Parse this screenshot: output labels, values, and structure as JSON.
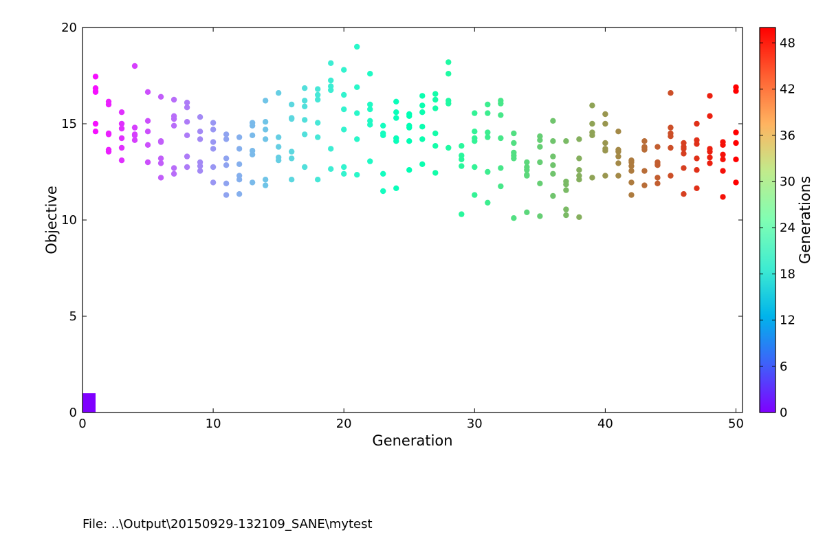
{
  "chart_data": {
    "type": "scatter",
    "xlabel": "Generation",
    "ylabel": "Objective",
    "xlim": [
      0,
      50.5
    ],
    "ylim": [
      0,
      20
    ],
    "xticks": [
      0,
      10,
      20,
      30,
      40,
      50
    ],
    "yticks": [
      0,
      5,
      10,
      15,
      20
    ],
    "grid": false,
    "colormap": "rainbow",
    "colorbar": {
      "label": "Generations",
      "range": [
        0,
        50
      ],
      "ticks": [
        0,
        6,
        12,
        18,
        24,
        30,
        36,
        42,
        48
      ],
      "placement": "right"
    },
    "bar": {
      "x": [
        0,
        1
      ],
      "height": 1,
      "color": "#7f00ff"
    },
    "points": [
      {
        "g": 1,
        "y": [
          17.45,
          16.85,
          16.7,
          16.65,
          15.0,
          14.6
        ]
      },
      {
        "g": 2,
        "y": [
          16.15,
          16.0,
          14.5,
          14.45,
          13.65,
          13.55
        ]
      },
      {
        "g": 3,
        "y": [
          15.6,
          15.0,
          14.75,
          14.25,
          13.75,
          13.1
        ]
      },
      {
        "g": 4,
        "y": [
          18.0,
          14.8,
          14.45,
          14.4,
          14.15
        ]
      },
      {
        "g": 5,
        "y": [
          16.65,
          15.15,
          14.6,
          13.9,
          13.0
        ]
      },
      {
        "g": 6,
        "y": [
          16.4,
          14.1,
          14.05,
          13.2,
          12.95,
          12.2
        ]
      },
      {
        "g": 7,
        "y": [
          16.25,
          15.4,
          15.25,
          14.9,
          12.7,
          12.4
        ]
      },
      {
        "g": 8,
        "y": [
          16.1,
          15.85,
          15.1,
          14.4,
          13.3,
          12.75
        ]
      },
      {
        "g": 9,
        "y": [
          15.35,
          14.6,
          14.2,
          13.0,
          12.8,
          12.55
        ]
      },
      {
        "g": 10,
        "y": [
          15.05,
          14.7,
          14.05,
          13.7,
          12.75,
          11.95
        ]
      },
      {
        "g": 11,
        "y": [
          14.45,
          14.2,
          13.2,
          12.85,
          11.9,
          11.3
        ]
      },
      {
        "g": 12,
        "y": [
          14.3,
          13.7,
          12.9,
          12.3,
          12.1,
          11.35
        ]
      },
      {
        "g": 13,
        "y": [
          15.05,
          14.9,
          14.4,
          13.6,
          13.4,
          11.95
        ]
      },
      {
        "g": 14,
        "y": [
          16.2,
          15.1,
          14.7,
          14.2,
          12.1,
          11.8
        ]
      },
      {
        "g": 15,
        "y": [
          16.6,
          14.3,
          13.8,
          13.25,
          13.1
        ]
      },
      {
        "g": 16,
        "y": [
          16.0,
          15.3,
          15.25,
          13.55,
          13.2,
          12.1
        ]
      },
      {
        "g": 17,
        "y": [
          16.85,
          16.2,
          15.9,
          15.2,
          14.45,
          12.75
        ]
      },
      {
        "g": 18,
        "y": [
          16.8,
          16.5,
          16.25,
          15.05,
          14.3,
          12.1
        ]
      },
      {
        "g": 19,
        "y": [
          18.15,
          17.25,
          16.95,
          16.75,
          13.7,
          12.65
        ]
      },
      {
        "g": 20,
        "y": [
          17.8,
          16.5,
          15.75,
          14.7,
          12.75,
          12.4
        ]
      },
      {
        "g": 21,
        "y": [
          19.0,
          16.9,
          15.55,
          14.2,
          12.35
        ]
      },
      {
        "g": 22,
        "y": [
          17.6,
          16.0,
          15.75,
          15.15,
          14.95,
          13.05
        ]
      },
      {
        "g": 23,
        "y": [
          14.9,
          14.5,
          14.4,
          12.4,
          11.5
        ]
      },
      {
        "g": 24,
        "y": [
          16.15,
          15.6,
          15.3,
          14.25,
          14.1,
          11.65
        ]
      },
      {
        "g": 25,
        "y": [
          15.5,
          15.4,
          14.9,
          14.8,
          14.1,
          12.6
        ]
      },
      {
        "g": 26,
        "y": [
          16.45,
          15.95,
          15.6,
          14.85,
          14.2,
          12.9
        ]
      },
      {
        "g": 27,
        "y": [
          16.55,
          16.25,
          15.8,
          14.5,
          13.85,
          12.45
        ]
      },
      {
        "g": 28,
        "y": [
          18.2,
          17.6,
          16.2,
          16.05,
          13.75
        ]
      },
      {
        "g": 29,
        "y": [
          13.85,
          13.35,
          13.15,
          12.8,
          10.3
        ]
      },
      {
        "g": 30,
        "y": [
          15.55,
          14.6,
          14.25,
          14.1,
          12.75,
          11.3
        ]
      },
      {
        "g": 31,
        "y": [
          16.0,
          15.55,
          14.55,
          14.3,
          12.5,
          10.9
        ]
      },
      {
        "g": 32,
        "y": [
          16.2,
          16.05,
          15.45,
          14.25,
          12.7,
          11.75
        ]
      },
      {
        "g": 33,
        "y": [
          14.5,
          14.0,
          13.5,
          13.35,
          13.2,
          10.1
        ]
      },
      {
        "g": 34,
        "y": [
          13.0,
          12.75,
          12.6,
          12.35,
          12.3,
          10.4
        ]
      },
      {
        "g": 35,
        "y": [
          14.35,
          14.15,
          13.8,
          13.0,
          11.9,
          10.2
        ]
      },
      {
        "g": 36,
        "y": [
          15.15,
          14.1,
          13.3,
          12.85,
          12.4,
          11.25
        ]
      },
      {
        "g": 37,
        "y": [
          14.1,
          12.0,
          11.85,
          11.55,
          10.55,
          10.25
        ]
      },
      {
        "g": 38,
        "y": [
          14.2,
          13.2,
          12.6,
          12.3,
          12.1,
          10.15
        ]
      },
      {
        "g": 39,
        "y": [
          15.95,
          15.0,
          14.55,
          14.4,
          12.2
        ]
      },
      {
        "g": 40,
        "y": [
          15.5,
          15.0,
          14.0,
          13.7,
          13.6,
          12.3
        ]
      },
      {
        "g": 41,
        "y": [
          14.6,
          13.65,
          13.55,
          13.3,
          12.95,
          12.3
        ]
      },
      {
        "g": 42,
        "y": [
          13.1,
          13.0,
          12.8,
          12.55,
          11.95,
          11.3
        ]
      },
      {
        "g": 43,
        "y": [
          14.1,
          13.8,
          13.75,
          13.65,
          12.55,
          11.8
        ]
      },
      {
        "g": 44,
        "y": [
          13.8,
          13.0,
          12.9,
          12.85,
          12.2,
          11.9
        ]
      },
      {
        "g": 45,
        "y": [
          16.6,
          14.8,
          14.5,
          14.35,
          13.75,
          12.3
        ]
      },
      {
        "g": 46,
        "y": [
          14.0,
          13.8,
          13.7,
          13.45,
          12.7,
          11.35
        ]
      },
      {
        "g": 47,
        "y": [
          15.0,
          14.15,
          13.95,
          13.2,
          12.6,
          11.65
        ]
      },
      {
        "g": 48,
        "y": [
          16.45,
          15.4,
          13.7,
          13.55,
          13.25,
          12.95
        ]
      },
      {
        "g": 49,
        "y": [
          14.05,
          13.9,
          13.4,
          13.15,
          12.55,
          11.2
        ]
      },
      {
        "g": 50,
        "y": [
          16.9,
          16.7,
          14.55,
          14.0,
          13.15,
          11.95
        ]
      }
    ]
  },
  "footer": {
    "file_text": "File: ..\\Output\\20150929-132109_SANE\\mytest"
  }
}
